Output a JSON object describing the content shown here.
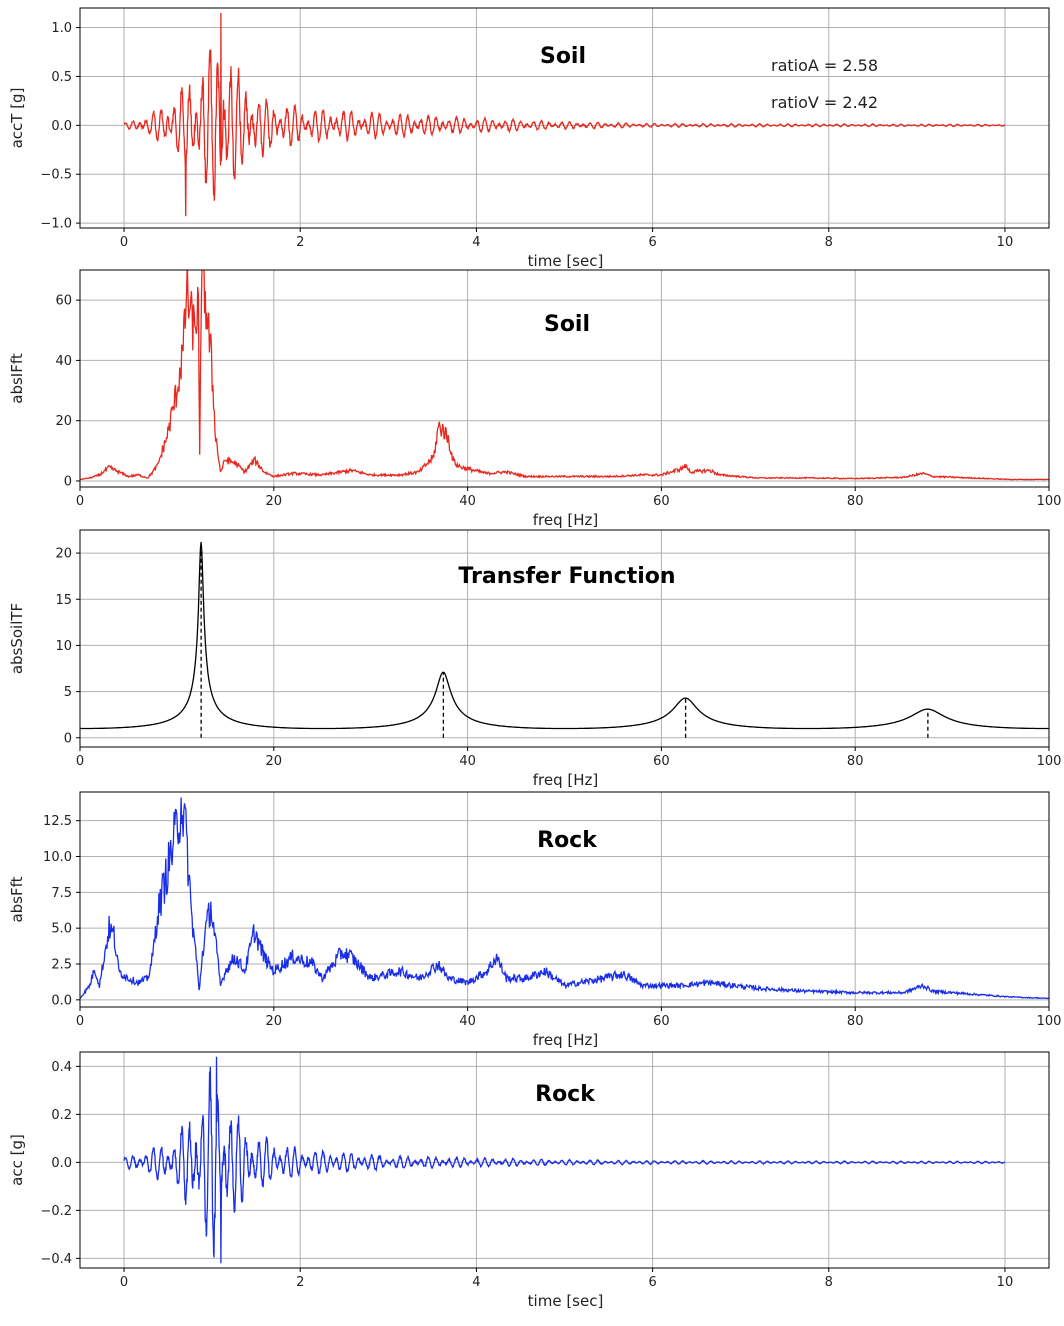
{
  "chart_data": [
    {
      "type": "line",
      "title": "Soil",
      "xlabel": "time [sec]",
      "ylabel": "accT [g]",
      "xlim": [
        -0.5,
        10.5
      ],
      "ylim": [
        -1.05,
        1.2
      ],
      "xticks": [
        0,
        2,
        4,
        6,
        8,
        10
      ],
      "yticks": [
        -1.0,
        -0.5,
        0.0,
        0.5,
        1.0
      ],
      "yticklabels": [
        "−1.0",
        "−0.5",
        "0.0",
        "0.5",
        "1.0"
      ],
      "grid": true,
      "annotations": [
        "ratioA = 2.58",
        "ratioV = 2.42"
      ],
      "series": [
        {
          "color": "#e8281e",
          "kind": "accel",
          "x_range": [
            0,
            10
          ],
          "peak_times": [
            1.1,
            0.7
          ],
          "peak_values": [
            1.15,
            -0.93
          ],
          "envelope": [
            [
              0,
              0.02
            ],
            [
              0.3,
              0.12
            ],
            [
              0.6,
              0.35
            ],
            [
              0.9,
              0.75
            ],
            [
              1.1,
              1.0
            ],
            [
              1.3,
              0.6
            ],
            [
              1.6,
              0.3
            ],
            [
              2.0,
              0.2
            ],
            [
              3.0,
              0.13
            ],
            [
              4.0,
              0.08
            ],
            [
              5.0,
              0.04
            ],
            [
              6.0,
              0.02
            ],
            [
              8.0,
              0.015
            ],
            [
              10.0,
              0.01
            ]
          ]
        }
      ]
    },
    {
      "type": "line",
      "title": "Soil",
      "xlabel": "freq [Hz]",
      "ylabel": "absIFft",
      "xlim": [
        0,
        100
      ],
      "ylim": [
        -2,
        70
      ],
      "xticks": [
        0,
        20,
        40,
        60,
        80,
        100
      ],
      "yticks": [
        0,
        20,
        40,
        60
      ],
      "grid": true,
      "series": [
        {
          "color": "#e8281e",
          "kind": "spectrum",
          "x_range": [
            0,
            100
          ],
          "points": [
            [
              0,
              0.5
            ],
            [
              1,
              1
            ],
            [
              2,
              2
            ],
            [
              3,
              4.5
            ],
            [
              4,
              3
            ],
            [
              5,
              1.5
            ],
            [
              6,
              2
            ],
            [
              7,
              1
            ],
            [
              8,
              5
            ],
            [
              9,
              15
            ],
            [
              10,
              30
            ],
            [
              10.7,
              45
            ],
            [
              11,
              64
            ],
            [
              11.4,
              55
            ],
            [
              11.8,
              50
            ],
            [
              12.2,
              60
            ],
            [
              12.35,
              5
            ],
            [
              12.5,
              62
            ],
            [
              12.8,
              66
            ],
            [
              13.1,
              55
            ],
            [
              13.5,
              42
            ],
            [
              14.0,
              15
            ],
            [
              14.5,
              3
            ],
            [
              15,
              7
            ],
            [
              16,
              6
            ],
            [
              17,
              3
            ],
            [
              18,
              7
            ],
            [
              19,
              3
            ],
            [
              20,
              1.5
            ],
            [
              22,
              2.5
            ],
            [
              25,
              2
            ],
            [
              28,
              3.5
            ],
            [
              30,
              2
            ],
            [
              33,
              2
            ],
            [
              35,
              3
            ],
            [
              36.5,
              8
            ],
            [
              37,
              18
            ],
            [
              37.5,
              17
            ],
            [
              38,
              14
            ],
            [
              38.5,
              7
            ],
            [
              39,
              5
            ],
            [
              40,
              4
            ],
            [
              42,
              2.5
            ],
            [
              44,
              3
            ],
            [
              46,
              1.5
            ],
            [
              50,
              1.5
            ],
            [
              55,
              1.5
            ],
            [
              58,
              2
            ],
            [
              60,
              2
            ],
            [
              62,
              4
            ],
            [
              62.5,
              5
            ],
            [
              63,
              3
            ],
            [
              65,
              3.5
            ],
            [
              66,
              2
            ],
            [
              70,
              1
            ],
            [
              75,
              1
            ],
            [
              80,
              0.8
            ],
            [
              85,
              1.2
            ],
            [
              87,
              2.5
            ],
            [
              88,
              1.5
            ],
            [
              92,
              1
            ],
            [
              96,
              0.5
            ],
            [
              100,
              0.5
            ]
          ]
        }
      ]
    },
    {
      "type": "line",
      "title": "Transfer Function",
      "xlabel": "freq [Hz]",
      "ylabel": "absSoilTF",
      "xlim": [
        0,
        100
      ],
      "ylim": [
        -1,
        22.5
      ],
      "xticks": [
        0,
        20,
        40,
        60,
        80,
        100
      ],
      "yticks": [
        0,
        5,
        10,
        15,
        20
      ],
      "grid": true,
      "series": [
        {
          "color": "#000000",
          "kind": "tf",
          "x_range": [
            0,
            100
          ],
          "peak_freqs": [
            12.5,
            37.5,
            62.5,
            87.5
          ],
          "peak_values": [
            21.2,
            7.1,
            4.3,
            3.1
          ],
          "markers_dashed": true
        }
      ]
    },
    {
      "type": "line",
      "title": "Rock",
      "xlabel": "freq [Hz]",
      "ylabel": "absFft",
      "xlim": [
        0,
        100
      ],
      "ylim": [
        -0.5,
        14.5
      ],
      "xticks": [
        0,
        20,
        40,
        60,
        80,
        100
      ],
      "yticks": [
        0.0,
        2.5,
        5.0,
        7.5,
        10.0,
        12.5
      ],
      "yticklabels": [
        "0.0",
        "2.5",
        "5.0",
        "7.5",
        "10.0",
        "12.5"
      ],
      "grid": true,
      "series": [
        {
          "color": "#1a2ee8",
          "kind": "spectrum",
          "x_range": [
            0,
            100
          ],
          "points": [
            [
              0,
              0.1
            ],
            [
              1,
              1
            ],
            [
              1.5,
              2.2
            ],
            [
              2,
              1
            ],
            [
              2.5,
              3
            ],
            [
              3,
              5
            ],
            [
              3.5,
              4.5
            ],
            [
              4,
              2
            ],
            [
              5,
              1.5
            ],
            [
              6,
              1.2
            ],
            [
              7,
              1.5
            ],
            [
              7.5,
              3
            ],
            [
              8,
              6
            ],
            [
              9,
              9
            ],
            [
              10,
              12
            ],
            [
              10.5,
              14
            ],
            [
              11,
              11
            ],
            [
              11.5,
              6
            ],
            [
              12,
              3
            ],
            [
              12.3,
              0.5
            ],
            [
              12.6,
              3
            ],
            [
              13,
              5
            ],
            [
              13.5,
              6.5
            ],
            [
              14,
              4
            ],
            [
              14.5,
              1
            ],
            [
              15,
              2
            ],
            [
              16,
              3
            ],
            [
              17,
              2
            ],
            [
              18,
              4.8
            ],
            [
              19,
              3
            ],
            [
              20,
              2
            ],
            [
              22,
              3
            ],
            [
              24,
              2.5
            ],
            [
              25,
              1.5
            ],
            [
              27,
              3.3
            ],
            [
              28,
              3
            ],
            [
              30,
              1.5
            ],
            [
              33,
              2
            ],
            [
              35,
              1.5
            ],
            [
              37,
              2.5
            ],
            [
              38,
              1.5
            ],
            [
              40,
              1.2
            ],
            [
              42,
              2
            ],
            [
              43,
              3
            ],
            [
              44,
              1.5
            ],
            [
              46,
              1.5
            ],
            [
              48,
              2
            ],
            [
              50,
              1
            ],
            [
              54,
              1.5
            ],
            [
              56,
              1.8
            ],
            [
              58,
              1
            ],
            [
              62,
              1
            ],
            [
              65,
              1.2
            ],
            [
              70,
              0.8
            ],
            [
              75,
              0.6
            ],
            [
              80,
              0.5
            ],
            [
              85,
              0.5
            ],
            [
              87,
              1
            ],
            [
              88,
              0.6
            ],
            [
              92,
              0.4
            ],
            [
              96,
              0.2
            ],
            [
              100,
              0.1
            ]
          ]
        }
      ]
    },
    {
      "type": "line",
      "title": "Rock",
      "xlabel": "time [sec]",
      "ylabel": "acc [g]",
      "xlim": [
        -0.5,
        10.5
      ],
      "ylim": [
        -0.44,
        0.46
      ],
      "xticks": [
        0,
        2,
        4,
        6,
        8,
        10
      ],
      "yticks": [
        -0.4,
        -0.2,
        0.0,
        0.2,
        0.4
      ],
      "yticklabels": [
        "−0.4",
        "−0.2",
        "0.0",
        "0.2",
        "0.4"
      ],
      "grid": true,
      "series": [
        {
          "color": "#1a2ee8",
          "kind": "accel",
          "x_range": [
            0,
            10
          ],
          "peak_times": [
            1.05,
            1.1
          ],
          "peak_values": [
            0.44,
            -0.42
          ],
          "envelope": [
            [
              0,
              0.02
            ],
            [
              0.3,
              0.06
            ],
            [
              0.6,
              0.12
            ],
            [
              0.85,
              0.3
            ],
            [
              1.05,
              0.44
            ],
            [
              1.2,
              0.25
            ],
            [
              1.5,
              0.12
            ],
            [
              2.0,
              0.06
            ],
            [
              3.0,
              0.03
            ],
            [
              4.0,
              0.02
            ],
            [
              5.0,
              0.012
            ],
            [
              6.0,
              0.008
            ],
            [
              8.0,
              0.006
            ],
            [
              10.0,
              0.005
            ]
          ]
        }
      ]
    }
  ]
}
